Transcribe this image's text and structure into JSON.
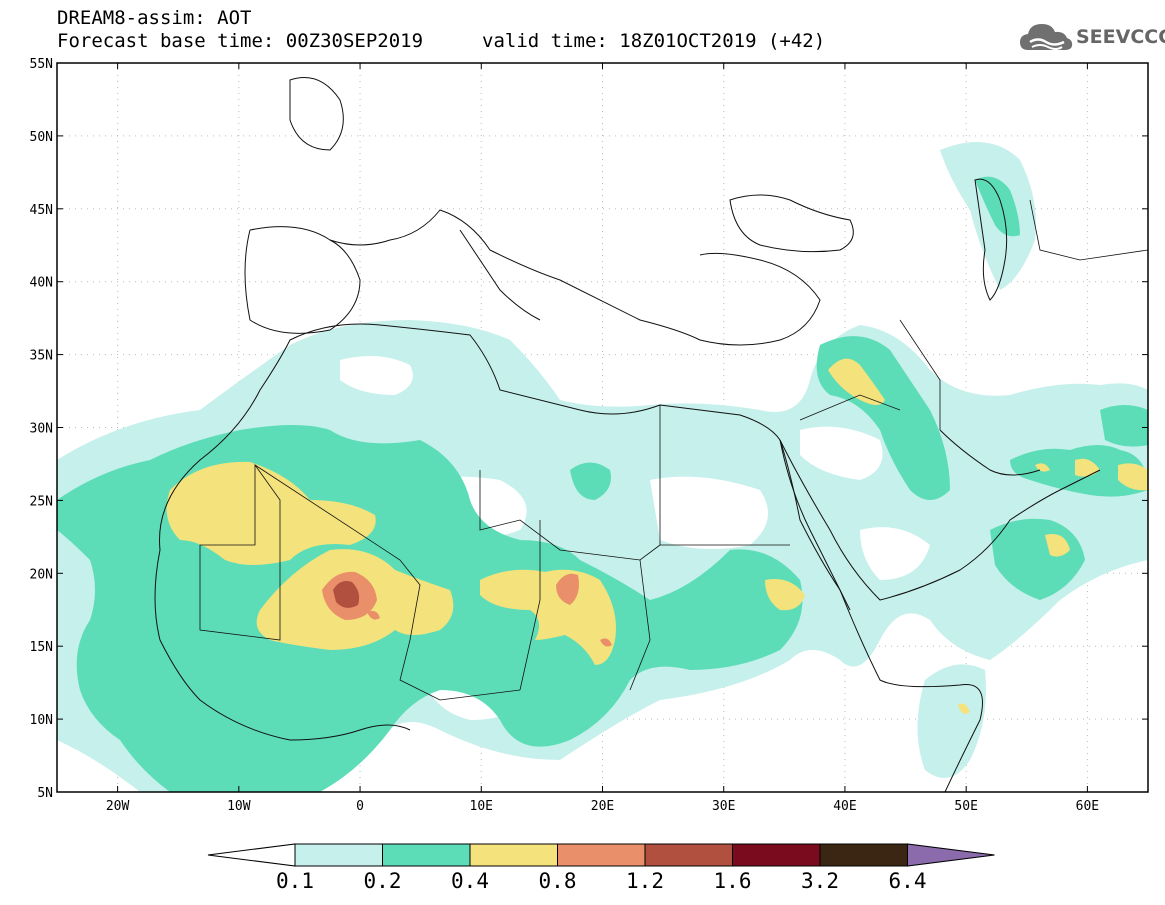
{
  "header": {
    "title": "DREAM8-assim: AOT",
    "base_time": "Forecast base time: 00Z30SEP2019",
    "valid_time": "valid time: 18Z01OCT2019 (+42)"
  },
  "logo": {
    "text": "SEEVCCC",
    "icon": "cloud-icon"
  },
  "map": {
    "lat_labels": [
      "55N",
      "50N",
      "45N",
      "40N",
      "35N",
      "30N",
      "25N",
      "20N",
      "15N",
      "10N",
      "5N"
    ],
    "lon_labels": [
      "20W",
      "10W",
      "0",
      "10E",
      "20E",
      "30E",
      "40E",
      "50E",
      "60E"
    ]
  },
  "colorbar": {
    "labels": [
      "0.1",
      "0.2",
      "0.4",
      "0.8",
      "1.2",
      "1.6",
      "3.2",
      "6.4"
    ],
    "colors": [
      "#ffffff",
      "#c6f0eb",
      "#5dddb7",
      "#f4e27c",
      "#e9906a",
      "#b2503f",
      "#7a0b1e",
      "#3a2612",
      "#8b6bab"
    ]
  },
  "palette": {
    "level1": "#c6f0eb",
    "level2": "#5dddb7",
    "level3": "#f4e27c",
    "level4": "#e9906a",
    "level5": "#b2503f"
  }
}
